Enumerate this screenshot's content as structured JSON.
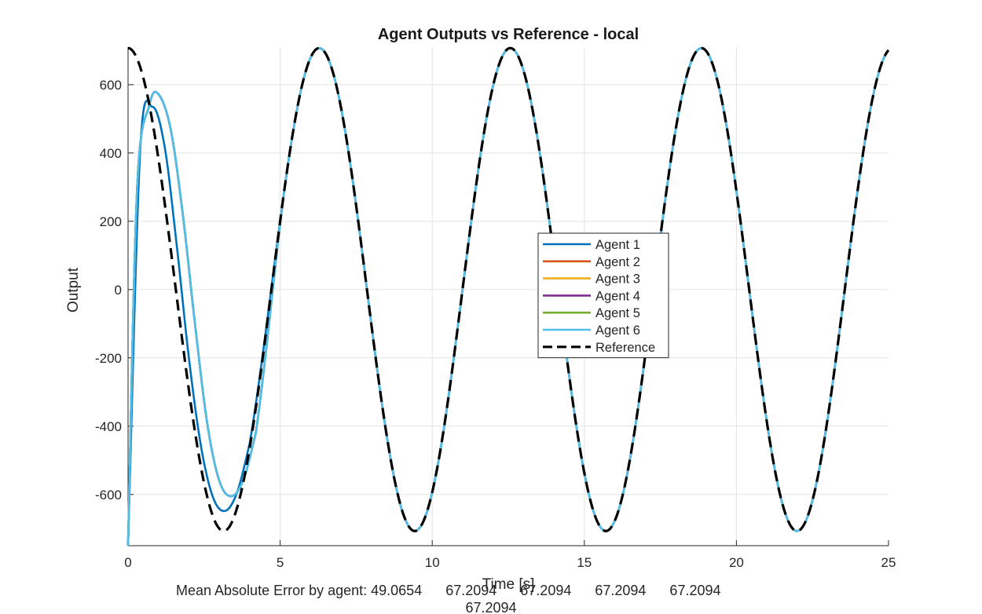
{
  "chart_data": {
    "type": "line",
    "title": "Agent Outputs vs Reference - local",
    "xlabel": "Time [s]",
    "ylabel": "Output",
    "xlim": [
      0,
      25
    ],
    "ylim": [
      -750,
      710
    ],
    "xticks": [
      0,
      5,
      10,
      15,
      20,
      25
    ],
    "yticks": [
      -600,
      -400,
      -200,
      0,
      200,
      400,
      600
    ],
    "grid": true,
    "legend_position": "center",
    "reference": {
      "name": "Reference",
      "style": "dashed",
      "color": "#000000",
      "formula": "y = 707.1 * cos(t)",
      "amplitude": 707.1,
      "period": 6.2832
    },
    "series": [
      {
        "name": "Agent 1",
        "color": "#0072BD",
        "x": [
          0,
          0.4,
          0.8,
          1.2,
          1.6,
          2.0,
          2.4,
          2.8,
          3.2,
          3.6,
          4.0,
          5.0,
          6.28,
          9.42,
          12.57,
          15.71,
          18.85,
          21.99,
          25
        ],
        "y": [
          -750,
          410,
          535,
          420,
          130,
          -200,
          -460,
          -610,
          -648,
          -590,
          -450,
          205,
          707,
          -707,
          707,
          -707,
          707,
          -707,
          700
        ]
      },
      {
        "name": "Agent 2",
        "color": "#D95319",
        "x": [
          0,
          0.3,
          0.7,
          1.0,
          1.4,
          1.8,
          2.2,
          2.6,
          3.0,
          3.4,
          3.8,
          4.2,
          5.0,
          6.28,
          9.42,
          12.57,
          15.71,
          18.85,
          21.99,
          25
        ],
        "y": [
          -750,
          300,
          540,
          572,
          470,
          220,
          -100,
          -390,
          -560,
          -605,
          -555,
          -420,
          205,
          707,
          -707,
          707,
          -707,
          707,
          -707,
          700
        ]
      },
      {
        "name": "Agent 3",
        "color": "#EDB120",
        "x": [
          0,
          0.3,
          0.7,
          1.0,
          1.4,
          1.8,
          2.2,
          2.6,
          3.0,
          3.4,
          3.8,
          4.2,
          5.0,
          6.28,
          9.42,
          12.57,
          15.71,
          18.85,
          21.99,
          25
        ],
        "y": [
          -750,
          300,
          540,
          572,
          470,
          220,
          -100,
          -390,
          -560,
          -605,
          -555,
          -420,
          205,
          707,
          -707,
          707,
          -707,
          707,
          -707,
          700
        ]
      },
      {
        "name": "Agent 4",
        "color": "#7E2F8E",
        "x": [
          0,
          0.3,
          0.7,
          1.0,
          1.4,
          1.8,
          2.2,
          2.6,
          3.0,
          3.4,
          3.8,
          4.2,
          5.0,
          6.28,
          9.42,
          12.57,
          15.71,
          18.85,
          21.99,
          25
        ],
        "y": [
          -750,
          300,
          540,
          572,
          470,
          220,
          -100,
          -390,
          -560,
          -605,
          -555,
          -420,
          205,
          707,
          -707,
          707,
          -707,
          707,
          -707,
          700
        ]
      },
      {
        "name": "Agent 5",
        "color": "#77AC30",
        "x": [
          0,
          0.3,
          0.7,
          1.0,
          1.4,
          1.8,
          2.2,
          2.6,
          3.0,
          3.4,
          3.8,
          4.2,
          5.0,
          6.28,
          9.42,
          12.57,
          15.71,
          18.85,
          21.99,
          25
        ],
        "y": [
          -750,
          300,
          540,
          572,
          470,
          220,
          -100,
          -390,
          -560,
          -605,
          -555,
          -420,
          205,
          707,
          -707,
          707,
          -707,
          707,
          -707,
          700
        ]
      },
      {
        "name": "Agent 6",
        "color": "#4DBEEE",
        "x": [
          0,
          0.3,
          0.7,
          1.0,
          1.4,
          1.8,
          2.2,
          2.6,
          3.0,
          3.4,
          3.8,
          4.2,
          5.0,
          6.28,
          9.42,
          12.57,
          15.71,
          18.85,
          21.99,
          25
        ],
        "y": [
          -750,
          300,
          540,
          572,
          470,
          220,
          -100,
          -390,
          -560,
          -605,
          -555,
          -420,
          205,
          707,
          -707,
          707,
          -707,
          707,
          -707,
          700
        ]
      }
    ],
    "annotation": {
      "line1": "Mean Absolute Error by agent: 49.0654      67.2094      67.2094      67.2094      67.2094",
      "line2": "67.2094"
    }
  }
}
